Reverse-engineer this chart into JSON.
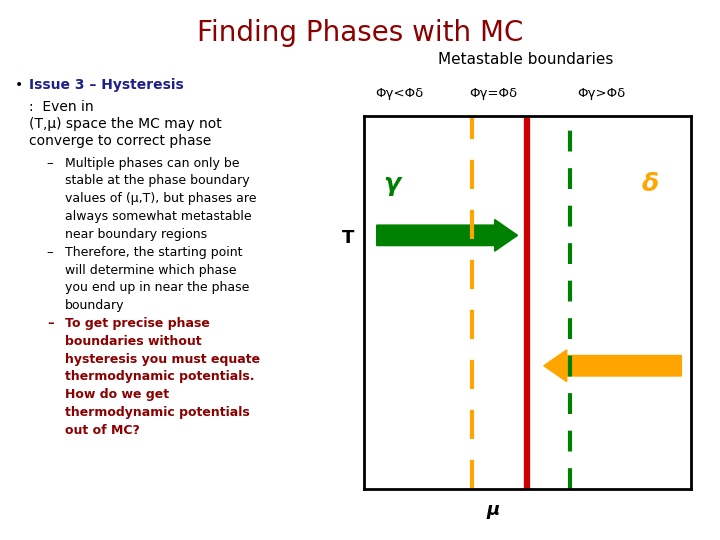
{
  "title": "Finding Phases with MC",
  "title_color": "#8B0000",
  "title_fontsize": 20,
  "bg_color": "#FFFFFF",
  "bullet_text_color": "#1F1F8B",
  "bullet_bold": "Issue 3 – Hysteresis",
  "bullet_normal": ":  Even in\n(T,μ) space the MC may not\nconverge to correct phase",
  "sub1_text": "Multiple phases can only be\nstable at the phase boundary\nvalues of (μ,T), but phases are\nalways somewhat metastable\nnear boundary regions",
  "sub2_text": "Therefore, the starting point\nwill determine which phase\nyou end up in near the phase\nboundary",
  "sub3_text": "To get precise phase\nboundaries without\nhysteresis you must equate\nthermodynamic potentials.\nHow do we get\nthermodynamic potentials\nout of MC?",
  "sub3_color": "#8B0000",
  "metastable_title": "Metastable boundaries",
  "label_left": "Φγ<Φδ",
  "label_mid": "Φγ=Φδ",
  "label_right": "Φγ>Φδ",
  "phase_gamma": "γ",
  "phase_delta": "δ",
  "T_label": "T",
  "mu_label": "μ",
  "orange_color": "#FFA500",
  "red_color": "#CC0000",
  "green_color": "#008000"
}
